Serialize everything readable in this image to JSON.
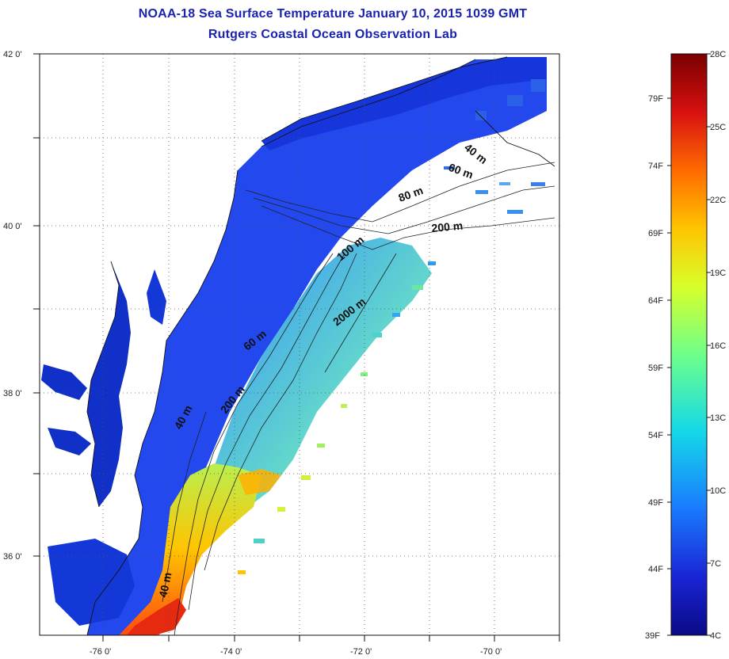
{
  "title": "NOAA-18 Sea Surface Temperature January 10, 2015 1039 GMT",
  "subtitle": "Rutgers Coastal Ocean Observation Lab",
  "map": {
    "lon_ticks": [
      "-76 0'",
      "-74 0'",
      "-72 0'",
      "-70 0'"
    ],
    "lat_ticks": [
      "42 0'",
      "40 0'",
      "38 0'",
      "36 0'"
    ],
    "grid": "dotted",
    "contour_labels": [
      "40 m",
      "60 m",
      "80 m",
      "200 m",
      "100 m",
      "2000 m",
      "60 m",
      "200 m",
      "40 m",
      "40 m"
    ]
  },
  "colorbar": {
    "celsius": [
      "28C",
      "25C",
      "22C",
      "19C",
      "16C",
      "13C",
      "10C",
      "7C",
      "4C"
    ],
    "fahrenheit": [
      "79F",
      "74F",
      "69F",
      "64F",
      "59F",
      "54F",
      "49F",
      "44F",
      "39F"
    ],
    "colors": [
      "#7a0000",
      "#d81010",
      "#ff6a00",
      "#ffc400",
      "#d8ff2a",
      "#6cff8c",
      "#14d8e8",
      "#1a7cff",
      "#1a24d6",
      "#0a0a86"
    ]
  },
  "colors": {
    "land": "#ffffff",
    "shelf_water": "#1f3fe6",
    "estuary": "#1030c8",
    "title": "#1a23b0"
  }
}
